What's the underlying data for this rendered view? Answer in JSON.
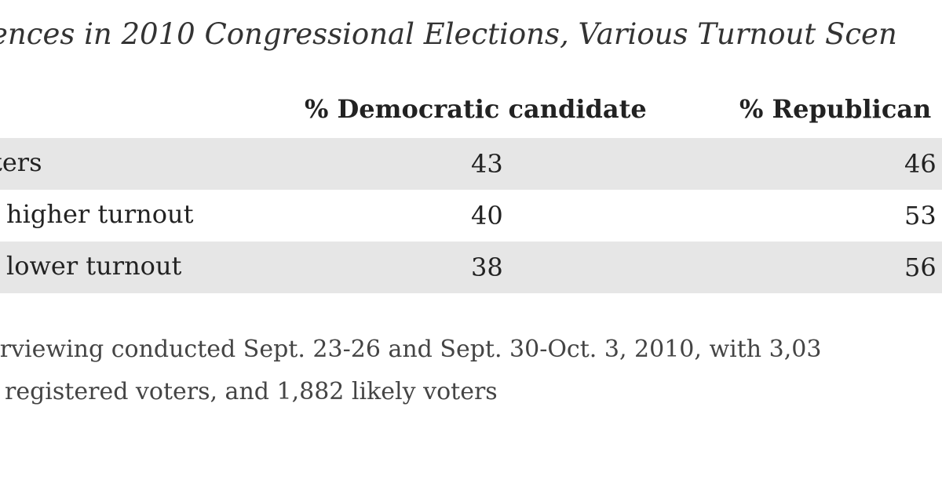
{
  "title": "ences in 2010 Congressional Elections, Various Turnout Scen",
  "columns": {
    "democratic": "% Democratic candidate",
    "republican": "% Republican"
  },
  "rows": [
    {
      "label": "ters",
      "dem": "43",
      "rep": "46"
    },
    {
      "label": "higher turnout",
      "dem": "40",
      "rep": "53"
    },
    {
      "label": "lower turnout",
      "dem": "38",
      "rep": "56"
    }
  ],
  "notes": [
    "erviewing conducted Sept. 23-26 and Sept. 30-Oct. 3, 2010, with 3,03",
    "registered voters, and 1,882 likely voters"
  ]
}
